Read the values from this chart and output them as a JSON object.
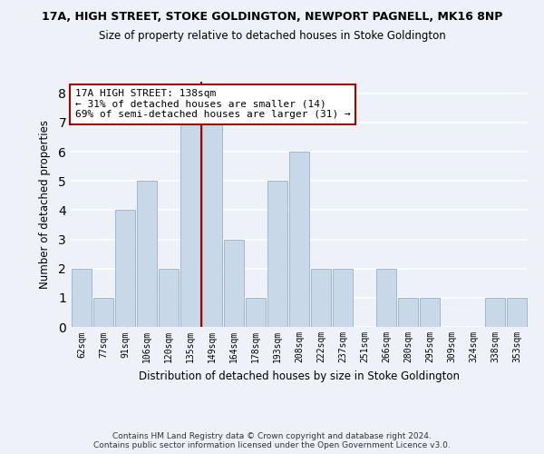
{
  "title1": "17A, HIGH STREET, STOKE GOLDINGTON, NEWPORT PAGNELL, MK16 8NP",
  "title2": "Size of property relative to detached houses in Stoke Goldington",
  "xlabel": "Distribution of detached houses by size in Stoke Goldington",
  "ylabel": "Number of detached properties",
  "categories": [
    "62sqm",
    "77sqm",
    "91sqm",
    "106sqm",
    "120sqm",
    "135sqm",
    "149sqm",
    "164sqm",
    "178sqm",
    "193sqm",
    "208sqm",
    "222sqm",
    "237sqm",
    "251sqm",
    "266sqm",
    "280sqm",
    "295sqm",
    "309sqm",
    "324sqm",
    "338sqm",
    "353sqm"
  ],
  "values": [
    2,
    1,
    4,
    5,
    2,
    7,
    7,
    3,
    1,
    5,
    6,
    2,
    2,
    0,
    2,
    1,
    1,
    0,
    0,
    1,
    1
  ],
  "bar_color": "#c8d8e8",
  "bar_edgecolor": "#a0b8cc",
  "vline_x": 5.5,
  "vline_color": "#aa0000",
  "annotation_line1": "17A HIGH STREET: 138sqm",
  "annotation_line2": "← 31% of detached houses are smaller (14)",
  "annotation_line3": "69% of semi-detached houses are larger (31) →",
  "annotation_box_color": "#ffffff",
  "annotation_box_edgecolor": "#aa0000",
  "ylim": [
    0,
    8.4
  ],
  "yticks": [
    0,
    1,
    2,
    3,
    4,
    5,
    6,
    7,
    8
  ],
  "footer1": "Contains HM Land Registry data © Crown copyright and database right 2024.",
  "footer2": "Contains public sector information licensed under the Open Government Licence v3.0.",
  "bg_color": "#eef2f8",
  "grid_color": "#ffffff"
}
